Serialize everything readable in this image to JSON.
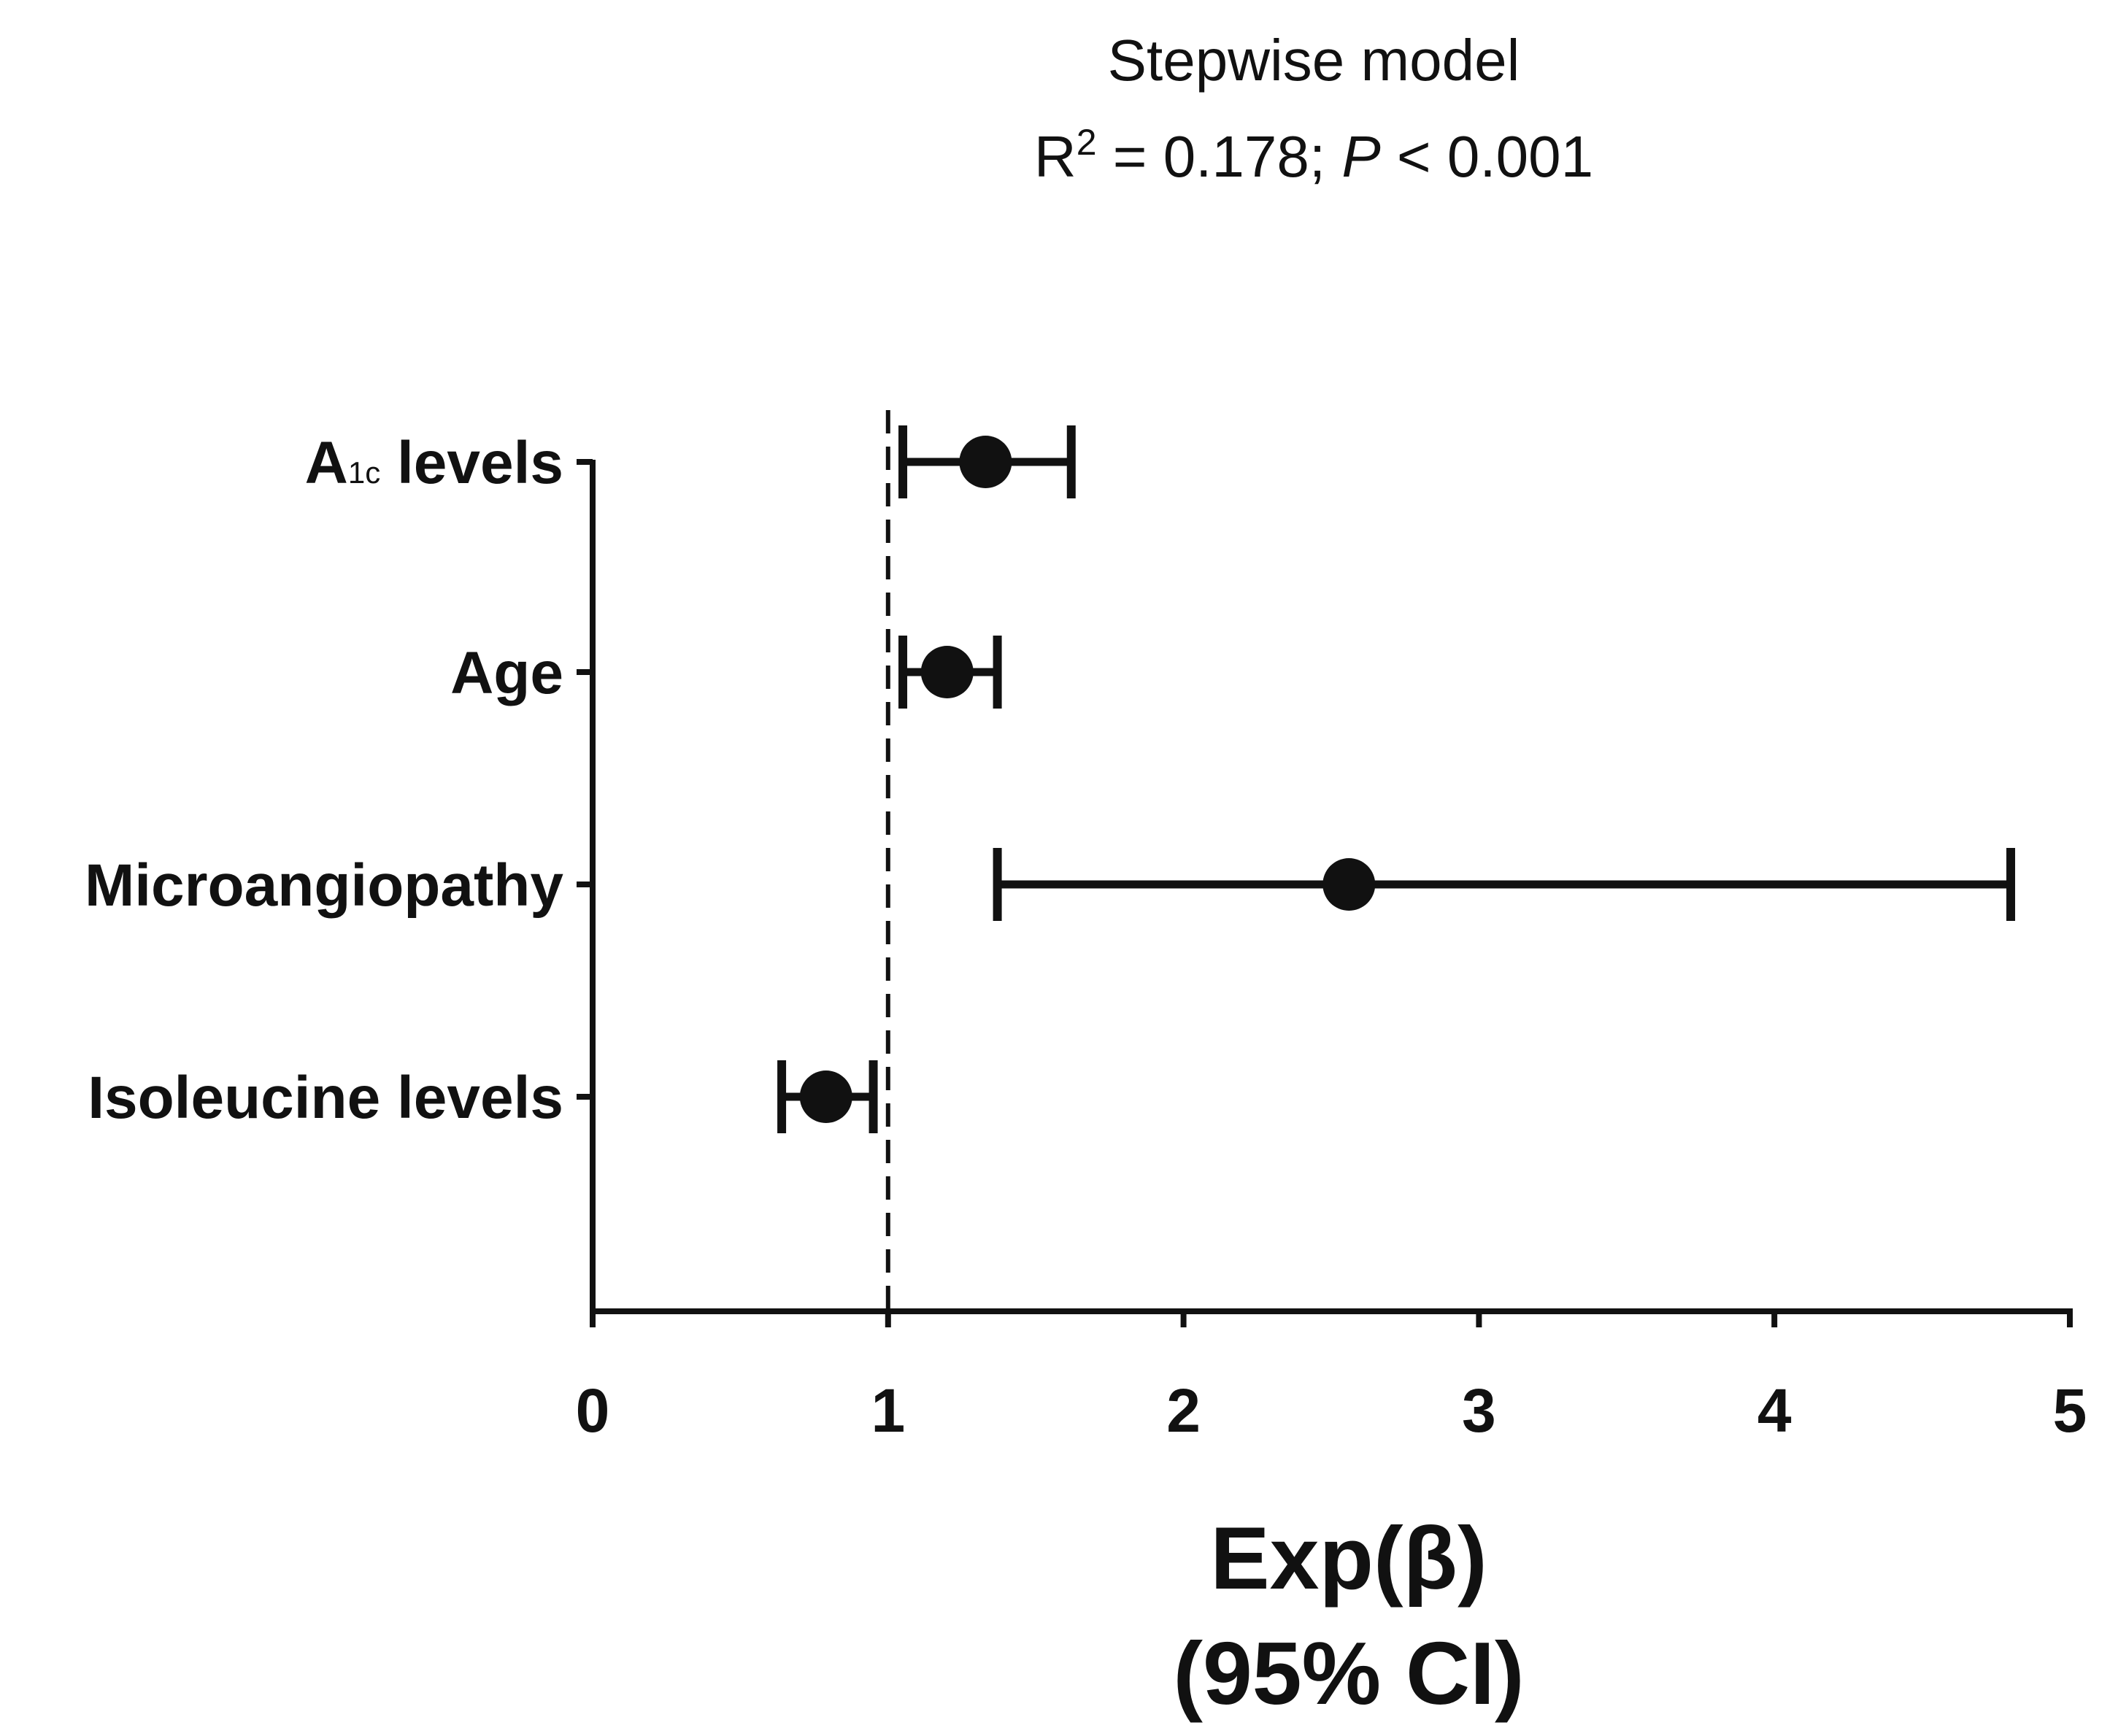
{
  "chart_data": {
    "type": "forest",
    "title": "Stepwise model",
    "subtitle": {
      "r2_label": "R",
      "r2_sup": "2",
      "r2_value": " = 0.178; ",
      "p_label": "P",
      "p_value": " < 0.001"
    },
    "xlabel": {
      "line1": "Exp(β)",
      "line2": "(95% CI)"
    },
    "xlim": [
      0,
      5
    ],
    "xticks": [
      0,
      1,
      2,
      3,
      4,
      5
    ],
    "reference_line": 1,
    "categories": [
      {
        "name": "A",
        "sub": "1c",
        "rest": " levels"
      },
      {
        "name": "Age",
        "sub": "",
        "rest": ""
      },
      {
        "name": "Microangiopathy",
        "sub": "",
        "rest": ""
      },
      {
        "name": "Isoleucine levels",
        "sub": "",
        "rest": ""
      }
    ],
    "estimates": [
      1.33,
      1.2,
      2.56,
      0.79
    ],
    "ci_lower": [
      1.05,
      1.05,
      1.37,
      0.64
    ],
    "ci_upper": [
      1.62,
      1.37,
      4.8,
      0.95
    ],
    "colors": {
      "ink": "#111111",
      "background": "#ffffff"
    }
  }
}
